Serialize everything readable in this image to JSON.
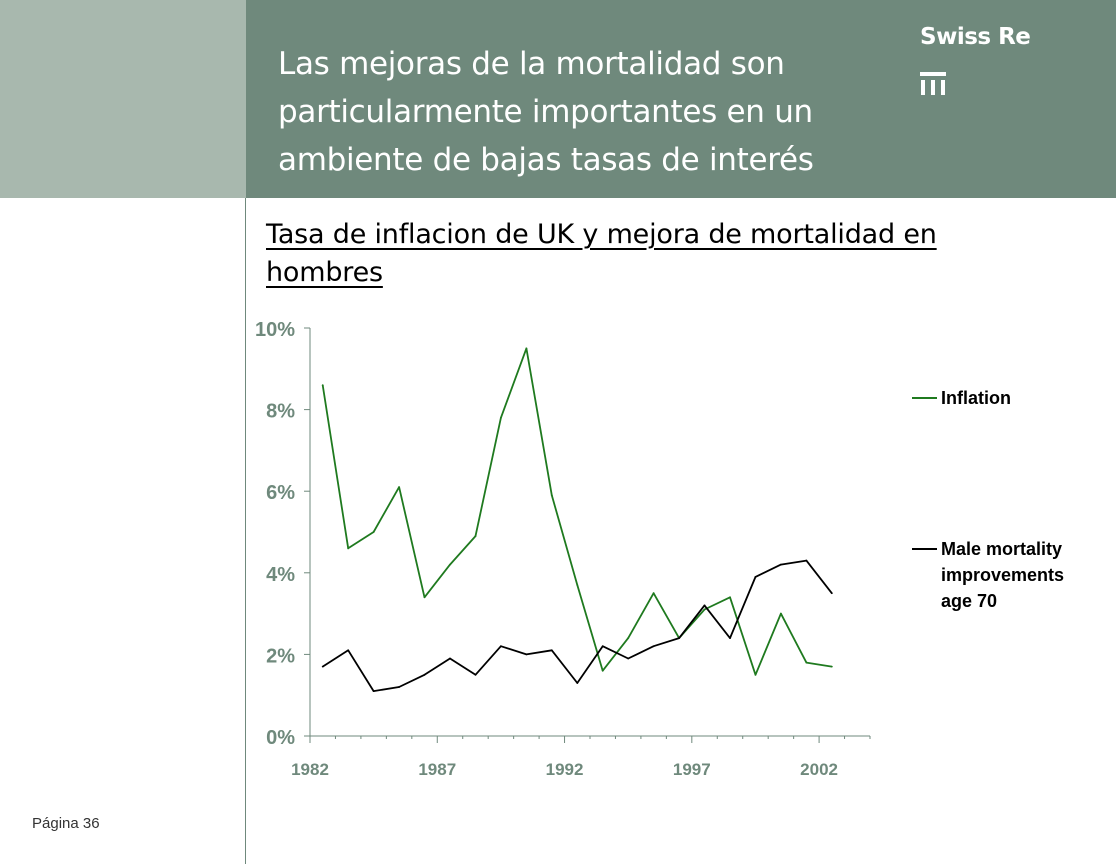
{
  "header": {
    "title": "Las mejoras de la mortalidad son particularmente importantes en un ambiente de bajas tasas de interés",
    "brand_name": "Swiss Re"
  },
  "subtitle": "Tasa de inflacion de UK y mejora de mortalidad en hombres",
  "footer": {
    "page": "Página 36"
  },
  "colors": {
    "header_bg": "#6f897c",
    "left_block_bg": "#a8b8ae",
    "inflation": "#1f7a1f",
    "mortality": "#000000"
  },
  "chart_data": {
    "type": "line",
    "title": "Tasa de inflacion de UK y mejora de mortalidad en hombres",
    "x": [
      1982.5,
      1983.5,
      1984.5,
      1985.5,
      1986.5,
      1987.5,
      1988.5,
      1989.5,
      1990.5,
      1991.5,
      1992.5,
      1993.5,
      1994.5,
      1995.5,
      1996.5,
      1997.5,
      1998.5,
      1999.5,
      2000.5,
      2001.5,
      2002.5
    ],
    "series": [
      {
        "name": "Inflation",
        "color": "#1f7a1f",
        "values": [
          8.6,
          4.6,
          5.0,
          6.1,
          3.4,
          4.2,
          4.9,
          7.8,
          9.5,
          5.9,
          3.7,
          1.6,
          2.4,
          3.5,
          2.4,
          3.1,
          3.4,
          1.5,
          3.0,
          1.8,
          1.7
        ]
      },
      {
        "name": "Male mortality improvements age 70",
        "color": "#000000",
        "values": [
          1.7,
          2.1,
          1.1,
          1.2,
          1.5,
          1.9,
          1.5,
          2.2,
          2.0,
          2.1,
          1.3,
          2.2,
          1.9,
          2.2,
          2.4,
          3.2,
          2.4,
          3.9,
          4.2,
          4.3,
          3.5
        ]
      }
    ],
    "legend_lines": {
      "Inflation": [
        "Inflation"
      ],
      "Male mortality improvements age 70": [
        "Male mortality",
        "improvements",
        "age 70"
      ]
    },
    "ylim": [
      0,
      10
    ],
    "yticks": [
      0,
      2,
      4,
      6,
      8,
      10
    ],
    "ytick_labels": [
      "0%",
      "2%",
      "4%",
      "6%",
      "8%",
      "10%"
    ],
    "xlim": [
      1982,
      2004
    ],
    "xticks": [
      1982,
      1987,
      1992,
      1997,
      2002
    ],
    "xtick_labels": [
      "1982",
      "1987",
      "1992",
      "1997",
      "2002"
    ],
    "legend_position": "right",
    "grid": false
  }
}
